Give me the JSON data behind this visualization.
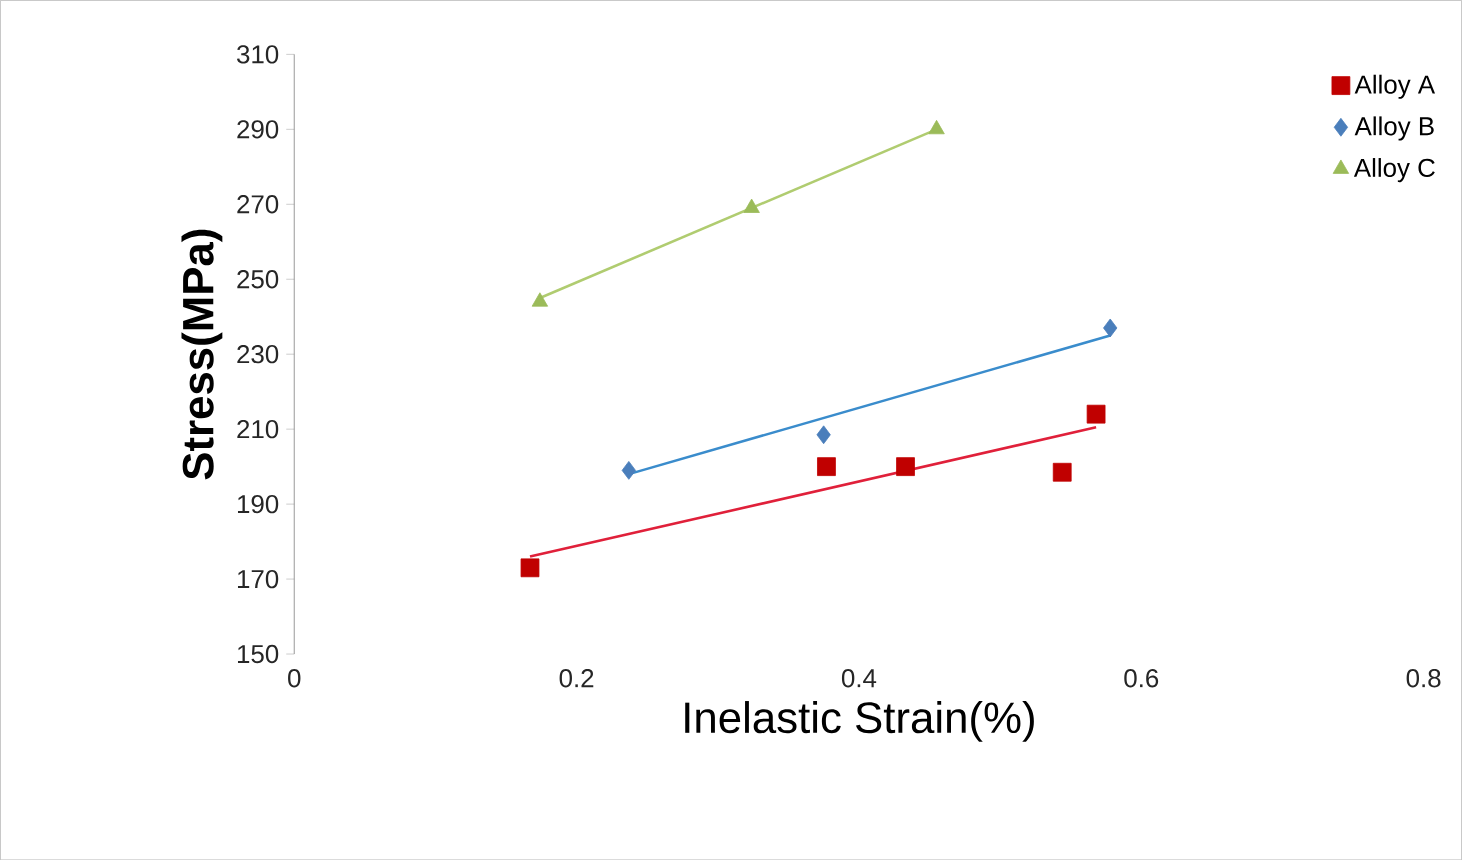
{
  "chart_data": {
    "type": "scatter",
    "xlabel": "Inelastic Strain(%)",
    "ylabel": "Stress(MPa)",
    "xlim": [
      0,
      0.8
    ],
    "ylim": [
      150,
      310
    ],
    "xticks": [
      0,
      0.2,
      0.4,
      0.6,
      0.8
    ],
    "yticks": [
      150,
      170,
      190,
      210,
      230,
      250,
      270,
      290,
      310
    ],
    "legend": "top right",
    "grid": false,
    "series": [
      {
        "name": "Alloy A",
        "color": "#c00000",
        "marker": "square",
        "x": [
          0.167,
          0.377,
          0.433,
          0.544,
          0.568
        ],
        "values": [
          173,
          200,
          200,
          198.5,
          214
        ]
      },
      {
        "name": "Alloy B",
        "color": "#4a7ebb",
        "marker": "diamond",
        "x": [
          0.237,
          0.375,
          0.578
        ],
        "values": [
          199,
          208.5,
          237
        ]
      },
      {
        "name": "Alloy C",
        "color": "#9bbb59",
        "marker": "triangle",
        "x": [
          0.174,
          0.324,
          0.455
        ],
        "values": [
          244,
          269,
          290
        ]
      },
      {
        "type": "line",
        "color": "#e0203a",
        "marker": "none",
        "x": [
          0.167,
          0.568
        ],
        "values": [
          176,
          210.5
        ]
      },
      {
        "type": "line",
        "color": "#3a8ccc",
        "marker": "none",
        "x": [
          0.237,
          0.578
        ],
        "values": [
          198,
          235
        ]
      },
      {
        "type": "line",
        "color": "#b0cc70",
        "marker": "none",
        "x": [
          0.174,
          0.455
        ],
        "values": [
          245,
          290
        ]
      }
    ]
  }
}
